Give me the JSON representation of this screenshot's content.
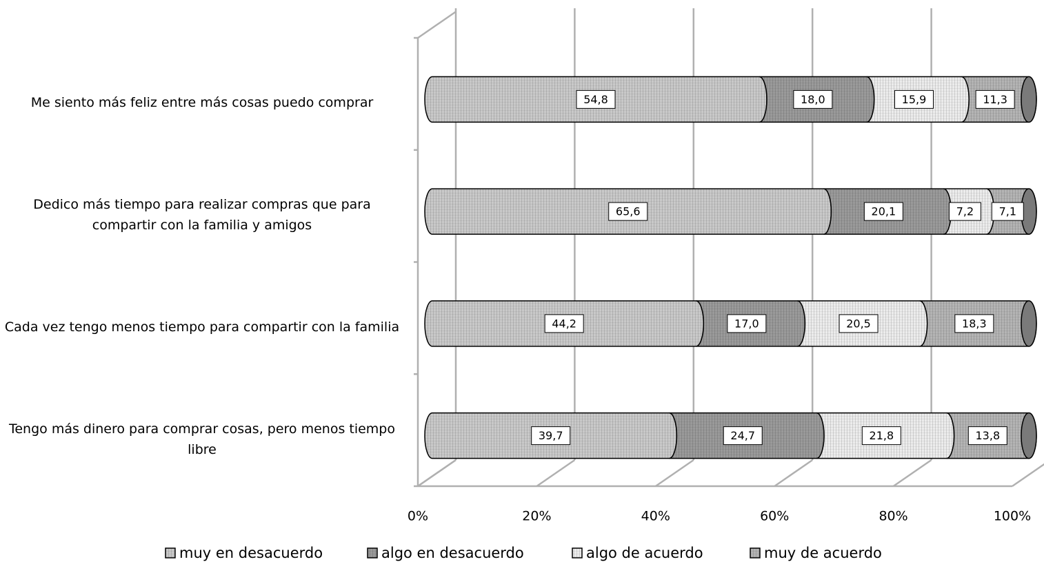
{
  "chart_data": {
    "type": "bar",
    "stacked": true,
    "orientation": "horizontal",
    "categories": [
      "Me siento más feliz entre más cosas puedo comprar",
      "Dedico más tiempo para realizar compras que para compartir con la familia y amigos",
      "Cada vez tengo menos tiempo para compartir con la familia",
      "Tengo más dinero para comprar cosas, pero menos tiempo libre"
    ],
    "series": [
      {
        "name": "muy en desacuerdo",
        "color": "#c9c9c9",
        "values": [
          54.8,
          65.6,
          44.2,
          39.7
        ],
        "value_labels": [
          "54,8",
          "65,6",
          "44,2",
          "39,7"
        ]
      },
      {
        "name": "algo en desacuerdo",
        "color": "#9a9a9a",
        "values": [
          18.0,
          20.1,
          17.0,
          24.7
        ],
        "value_labels": [
          "18,0",
          "20,1",
          "17,0",
          "24,7"
        ]
      },
      {
        "name": "algo de acuerdo",
        "color": "#ececec",
        "values": [
          15.9,
          7.2,
          20.5,
          21.8
        ],
        "value_labels": [
          "15,9",
          "7,2",
          "20,5",
          "21,8"
        ]
      },
      {
        "name": "muy de acuerdo",
        "color": "#b4b4b4",
        "values": [
          11.3,
          7.1,
          18.3,
          13.8
        ],
        "value_labels": [
          "11,3",
          "7,1",
          "18,3",
          "13,8"
        ]
      }
    ],
    "xlim": [
      0,
      100
    ],
    "xticks": [
      {
        "value": 0,
        "label": "0%"
      },
      {
        "value": 20,
        "label": "20%"
      },
      {
        "value": 40,
        "label": "40%"
      },
      {
        "value": 60,
        "label": "60%"
      },
      {
        "value": 80,
        "label": "80%"
      },
      {
        "value": 100,
        "label": "100%"
      }
    ],
    "grid": true,
    "legend": "bottom"
  }
}
